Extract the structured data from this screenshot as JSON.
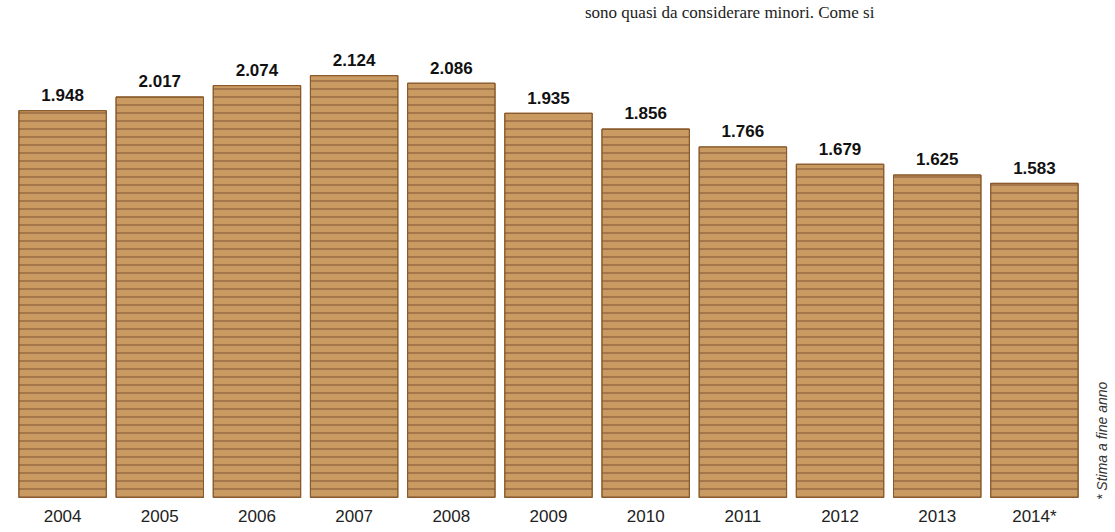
{
  "chart_data": {
    "type": "bar",
    "categories": [
      "2004",
      "2005",
      "2006",
      "2007",
      "2008",
      "2009",
      "2010",
      "2011",
      "2012",
      "2013",
      "2014*"
    ],
    "values": [
      1948,
      2017,
      2074,
      2124,
      2086,
      1935,
      1856,
      1766,
      1679,
      1625,
      1583
    ],
    "value_labels": [
      "1.948",
      "2.017",
      "2.074",
      "2.124",
      "2.086",
      "1.935",
      "1.856",
      "1.766",
      "1.679",
      "1.625",
      "1.583"
    ],
    "color": "#c99a62",
    "ylim": [
      0,
      2200
    ],
    "data_labels": true,
    "tick_labels": "x",
    "grid": false,
    "annotations": [
      "sono quasi da considerare minori. Come si",
      "* Stima a fine anno"
    ]
  }
}
